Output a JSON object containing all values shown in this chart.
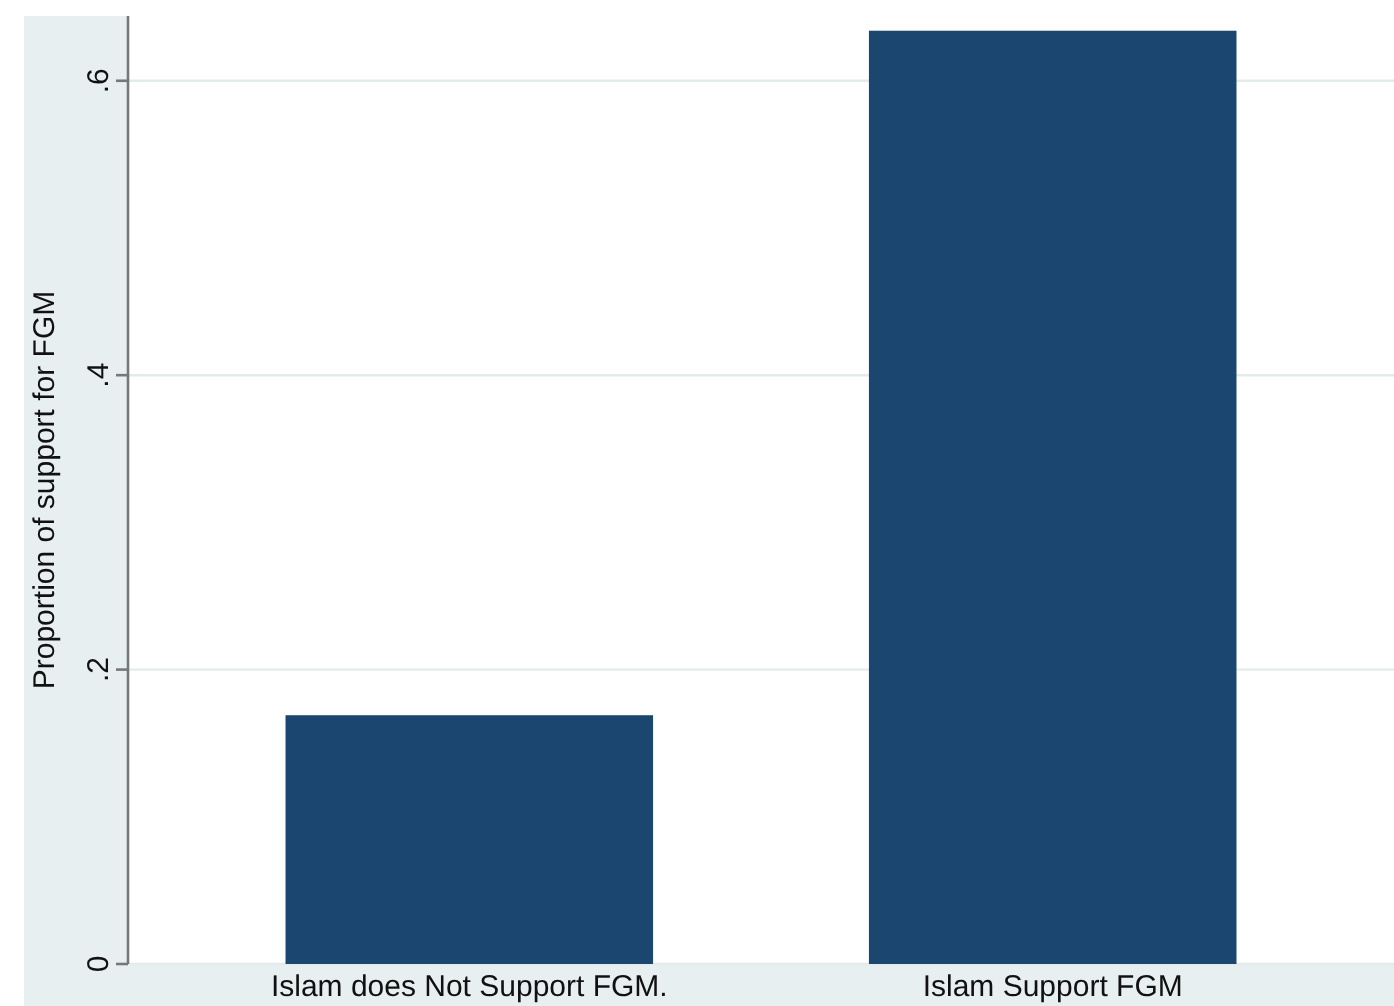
{
  "chart_data": {
    "type": "bar",
    "ylabel": "Proportion  of support for FGM",
    "categories": [
      "Islam does Not Support FGM.",
      "Islam Support FGM"
    ],
    "values": [
      0.169,
      0.634
    ],
    "color": "#1a4670",
    "ylim": [
      0,
      0.644
    ],
    "yticks": [
      {
        "value": 0,
        "label": "0"
      },
      {
        "value": 0.2,
        "label": ".2"
      },
      {
        "value": 0.4,
        "label": ".4"
      },
      {
        "value": 0.6,
        "label": ".6"
      }
    ],
    "grid": "y"
  }
}
